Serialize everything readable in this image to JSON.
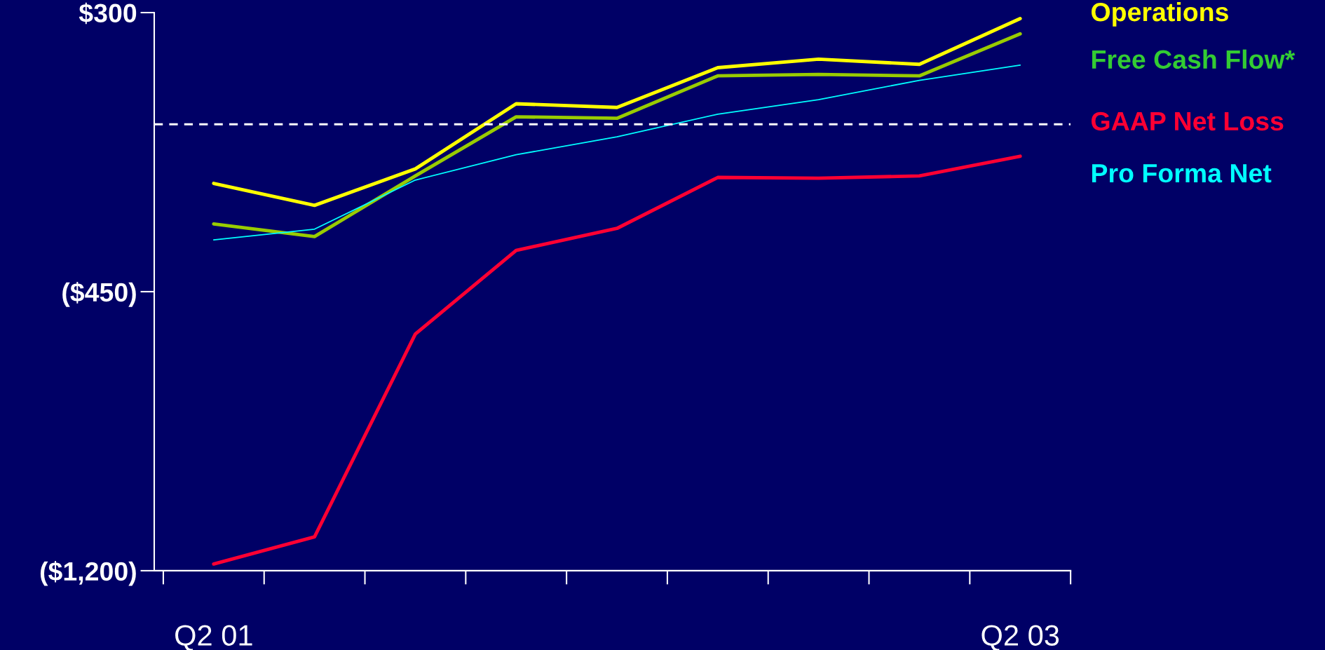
{
  "chart_data": {
    "type": "line",
    "categories": [
      "Q2 01",
      null,
      null,
      null,
      null,
      null,
      null,
      null,
      "Q2 03"
    ],
    "series": [
      {
        "name": "Operations",
        "color": "#ffff00",
        "values": [
          -159,
          -218,
          -120,
          55,
          45,
          152,
          175,
          161,
          284
        ]
      },
      {
        "name": "Free Cash Flow*",
        "color": "#99cc00",
        "values": [
          -268,
          -302,
          -139,
          20,
          16,
          130,
          134,
          130,
          243
        ]
      },
      {
        "name": "GAAP Net Loss",
        "color": "#ff0033",
        "values": [
          -1182,
          -1109,
          -564,
          -339,
          -280,
          -143,
          -145,
          -139,
          -86
        ]
      },
      {
        "name": "Pro Forma Net",
        "color": "#00ffff",
        "values": [
          -311,
          -282,
          -150,
          -82,
          -34,
          27,
          66,
          118,
          159
        ]
      }
    ],
    "ylim": [
      -1200,
      300
    ],
    "yticks": [
      {
        "value": 300,
        "label": "$300"
      },
      {
        "value": -450,
        "label": "($450)"
      },
      {
        "value": -1200,
        "label": "($1,200)"
      }
    ],
    "ref_lines": [
      {
        "axis": "y",
        "value": 0,
        "color": "#ffffff",
        "line_style": "dashed"
      }
    ],
    "grid": false,
    "legend": "right",
    "marker": "none",
    "line_style": "solid"
  }
}
